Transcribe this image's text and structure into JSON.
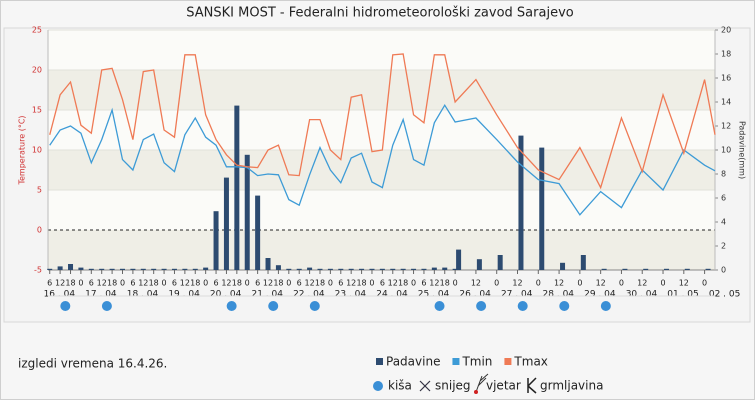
{
  "chart_data": {
    "type": "combo",
    "title": "SANSKI MOST - Federalni hidrometeorološki zavod Sarajevo",
    "y_label": "Temperature (°C)",
    "y2_label": "Padavine(mm)",
    "xlim": [
      5,
      390
    ],
    "ylim": [
      -5,
      25
    ],
    "yticks": [
      -5,
      0,
      5,
      10,
      15,
      20,
      25
    ],
    "y2lim": [
      0,
      20
    ],
    "y2ticks": [
      0,
      2,
      4,
      6,
      8,
      10,
      12,
      14,
      16,
      18,
      20
    ],
    "xticks": [
      {
        "value": 6,
        "label": "6"
      },
      {
        "value": 12,
        "label": "12"
      },
      {
        "value": 18,
        "label": "18"
      },
      {
        "value": 24,
        "label": "0"
      },
      {
        "value": 30,
        "label": "6"
      },
      {
        "value": 36,
        "label": "12"
      },
      {
        "value": 42,
        "label": "18"
      },
      {
        "value": 48,
        "label": "0"
      },
      {
        "value": 54,
        "label": "6"
      },
      {
        "value": 60,
        "label": "12"
      },
      {
        "value": 66,
        "label": "18"
      },
      {
        "value": 72,
        "label": "0"
      },
      {
        "value": 78,
        "label": "6"
      },
      {
        "value": 84,
        "label": "12"
      },
      {
        "value": 90,
        "label": "18"
      },
      {
        "value": 96,
        "label": "0"
      },
      {
        "value": 102,
        "label": "6"
      },
      {
        "value": 108,
        "label": "12"
      },
      {
        "value": 114,
        "label": "18"
      },
      {
        "value": 120,
        "label": "0"
      },
      {
        "value": 126,
        "label": "6"
      },
      {
        "value": 132,
        "label": "12"
      },
      {
        "value": 138,
        "label": "18"
      },
      {
        "value": 144,
        "label": "0"
      },
      {
        "value": 150,
        "label": "6"
      },
      {
        "value": 156,
        "label": "12"
      },
      {
        "value": 162,
        "label": "18"
      },
      {
        "value": 168,
        "label": "0"
      },
      {
        "value": 174,
        "label": "6"
      },
      {
        "value": 180,
        "label": "12"
      },
      {
        "value": 186,
        "label": "18"
      },
      {
        "value": 192,
        "label": "0"
      },
      {
        "value": 198,
        "label": "6"
      },
      {
        "value": 204,
        "label": "12"
      },
      {
        "value": 210,
        "label": "18"
      },
      {
        "value": 216,
        "label": "0"
      },
      {
        "value": 222,
        "label": "6"
      },
      {
        "value": 228,
        "label": "12"
      },
      {
        "value": 234,
        "label": "18"
      },
      {
        "value": 240,
        "label": "0"
      },
      {
        "value": 252,
        "label": "12"
      },
      {
        "value": 264,
        "label": "0"
      },
      {
        "value": 276,
        "label": "12"
      },
      {
        "value": 288,
        "label": "0"
      },
      {
        "value": 300,
        "label": "12"
      },
      {
        "value": 312,
        "label": "0"
      },
      {
        "value": 324,
        "label": "12"
      },
      {
        "value": 336,
        "label": "0"
      },
      {
        "value": 348,
        "label": "12"
      },
      {
        "value": 360,
        "label": "0"
      },
      {
        "value": 372,
        "label": "12"
      },
      {
        "value": 384,
        "label": "0"
      }
    ],
    "date_ticks": [
      {
        "value": 0,
        "label": "16 . 04"
      },
      {
        "value": 24,
        "label": "17 . 04"
      },
      {
        "value": 48,
        "label": "18 . 04"
      },
      {
        "value": 72,
        "label": "19 . 04"
      },
      {
        "value": 96,
        "label": "20 . 04"
      },
      {
        "value": 120,
        "label": "21 . 04"
      },
      {
        "value": 144,
        "label": "22 . 04"
      },
      {
        "value": 168,
        "label": "23 . 04"
      },
      {
        "value": 192,
        "label": "24 . 04"
      },
      {
        "value": 216,
        "label": "25 . 04"
      },
      {
        "value": 240,
        "label": "26 . 04"
      },
      {
        "value": 264,
        "label": "27 . 04"
      },
      {
        "value": 288,
        "label": "28 . 04"
      },
      {
        "value": 312,
        "label": "29 . 04"
      },
      {
        "value": 336,
        "label": "30 . 04"
      },
      {
        "value": 360,
        "label": "01 . 05"
      },
      {
        "value": 384,
        "label": "02 . 05"
      }
    ],
    "series": [
      {
        "name": "Padavine",
        "type": "bar",
        "axis": "y2",
        "color": "#2d4b70",
        "x": [
          6,
          12,
          18,
          24,
          30,
          36,
          42,
          48,
          54,
          60,
          66,
          72,
          78,
          84,
          90,
          96,
          102,
          108,
          114,
          120,
          126,
          132,
          138,
          144,
          150,
          156,
          162,
          168,
          174,
          180,
          186,
          192,
          198,
          204,
          210,
          216,
          222,
          228,
          234,
          240,
          242,
          254,
          266,
          278,
          290,
          302,
          314,
          326,
          338,
          350,
          362,
          374,
          386
        ],
        "values": [
          0.1,
          0.3,
          0.5,
          0.2,
          0.1,
          0.1,
          0.1,
          0.1,
          0.1,
          0.1,
          0.1,
          0.1,
          0.1,
          0.1,
          0.1,
          0.2,
          4.9,
          7.7,
          13.7,
          9.6,
          6.2,
          1.0,
          0.4,
          0.1,
          0.1,
          0.2,
          0.1,
          0.1,
          0.1,
          0.1,
          0.1,
          0.1,
          0.1,
          0.1,
          0.1,
          0.1,
          0.1,
          0.2,
          0.2,
          0.1,
          1.7,
          0.9,
          1.25,
          11.2,
          10.2,
          0.6,
          1.25,
          0.1,
          0.1,
          0.1,
          0.1,
          0.1,
          0.1
        ]
      },
      {
        "name": "Tmin",
        "type": "line",
        "color": "#3d9bd6",
        "x": [
          6,
          12,
          18,
          24,
          30,
          36,
          42,
          48,
          54,
          60,
          66,
          72,
          78,
          84,
          90,
          96,
          102,
          108,
          114,
          120,
          126,
          132,
          138,
          144,
          150,
          156,
          162,
          168,
          174,
          180,
          186,
          192,
          198,
          204,
          210,
          216,
          222,
          228,
          234,
          240,
          252,
          264,
          276,
          288,
          300,
          312,
          324,
          336,
          348,
          360,
          372,
          384,
          390
        ],
        "values": [
          10.6,
          12.5,
          13,
          12.1,
          8.4,
          11.3,
          15,
          8.8,
          7.5,
          11.3,
          12,
          8.4,
          7.3,
          11.9,
          14,
          11.6,
          10.6,
          7.9,
          7.9,
          7.8,
          6.8,
          7,
          6.9,
          3.8,
          3.1,
          6.9,
          10.3,
          7.5,
          5.9,
          9,
          9.6,
          6,
          5.3,
          10.6,
          13.8,
          8.8,
          8.1,
          13.4,
          15.6,
          13.5,
          14,
          11.3,
          8.5,
          6.3,
          5.8,
          1.9,
          4.8,
          2.8,
          7.5,
          5,
          10,
          8.1,
          7.4
        ]
      },
      {
        "name": "Tmax",
        "type": "line",
        "color": "#ef7a55",
        "x": [
          6,
          12,
          18,
          24,
          30,
          36,
          42,
          48,
          54,
          60,
          66,
          72,
          78,
          84,
          90,
          96,
          102,
          108,
          114,
          120,
          126,
          132,
          138,
          144,
          150,
          156,
          162,
          168,
          174,
          180,
          186,
          192,
          198,
          204,
          210,
          216,
          222,
          228,
          234,
          240,
          252,
          264,
          276,
          288,
          300,
          312,
          324,
          336,
          348,
          360,
          372,
          384,
          390
        ],
        "values": [
          11.9,
          16.9,
          18.5,
          13.1,
          12.1,
          20,
          20.2,
          16.3,
          11.3,
          19.8,
          20,
          12.5,
          11.6,
          21.9,
          21.9,
          14.4,
          11.3,
          9.4,
          8.1,
          7.9,
          7.8,
          10,
          10.6,
          6.9,
          6.8,
          13.8,
          13.8,
          10,
          8.8,
          16.6,
          16.9,
          9.8,
          10,
          21.9,
          22,
          14.4,
          13.4,
          21.9,
          21.9,
          16,
          18.8,
          14.4,
          10.3,
          7.5,
          6.3,
          10.3,
          5.3,
          14,
          7.3,
          16.9,
          9.6,
          18.8,
          11.9
        ]
      }
    ],
    "rain_icons_x": [
      15,
      39,
      111,
      135,
      159,
      231,
      255,
      279,
      303,
      327
    ],
    "forecast_note": "izgledi vremena 16.4.26.",
    "symbols": [
      "kiša",
      "snijeg",
      "vjetar",
      "grmljavina"
    ]
  }
}
